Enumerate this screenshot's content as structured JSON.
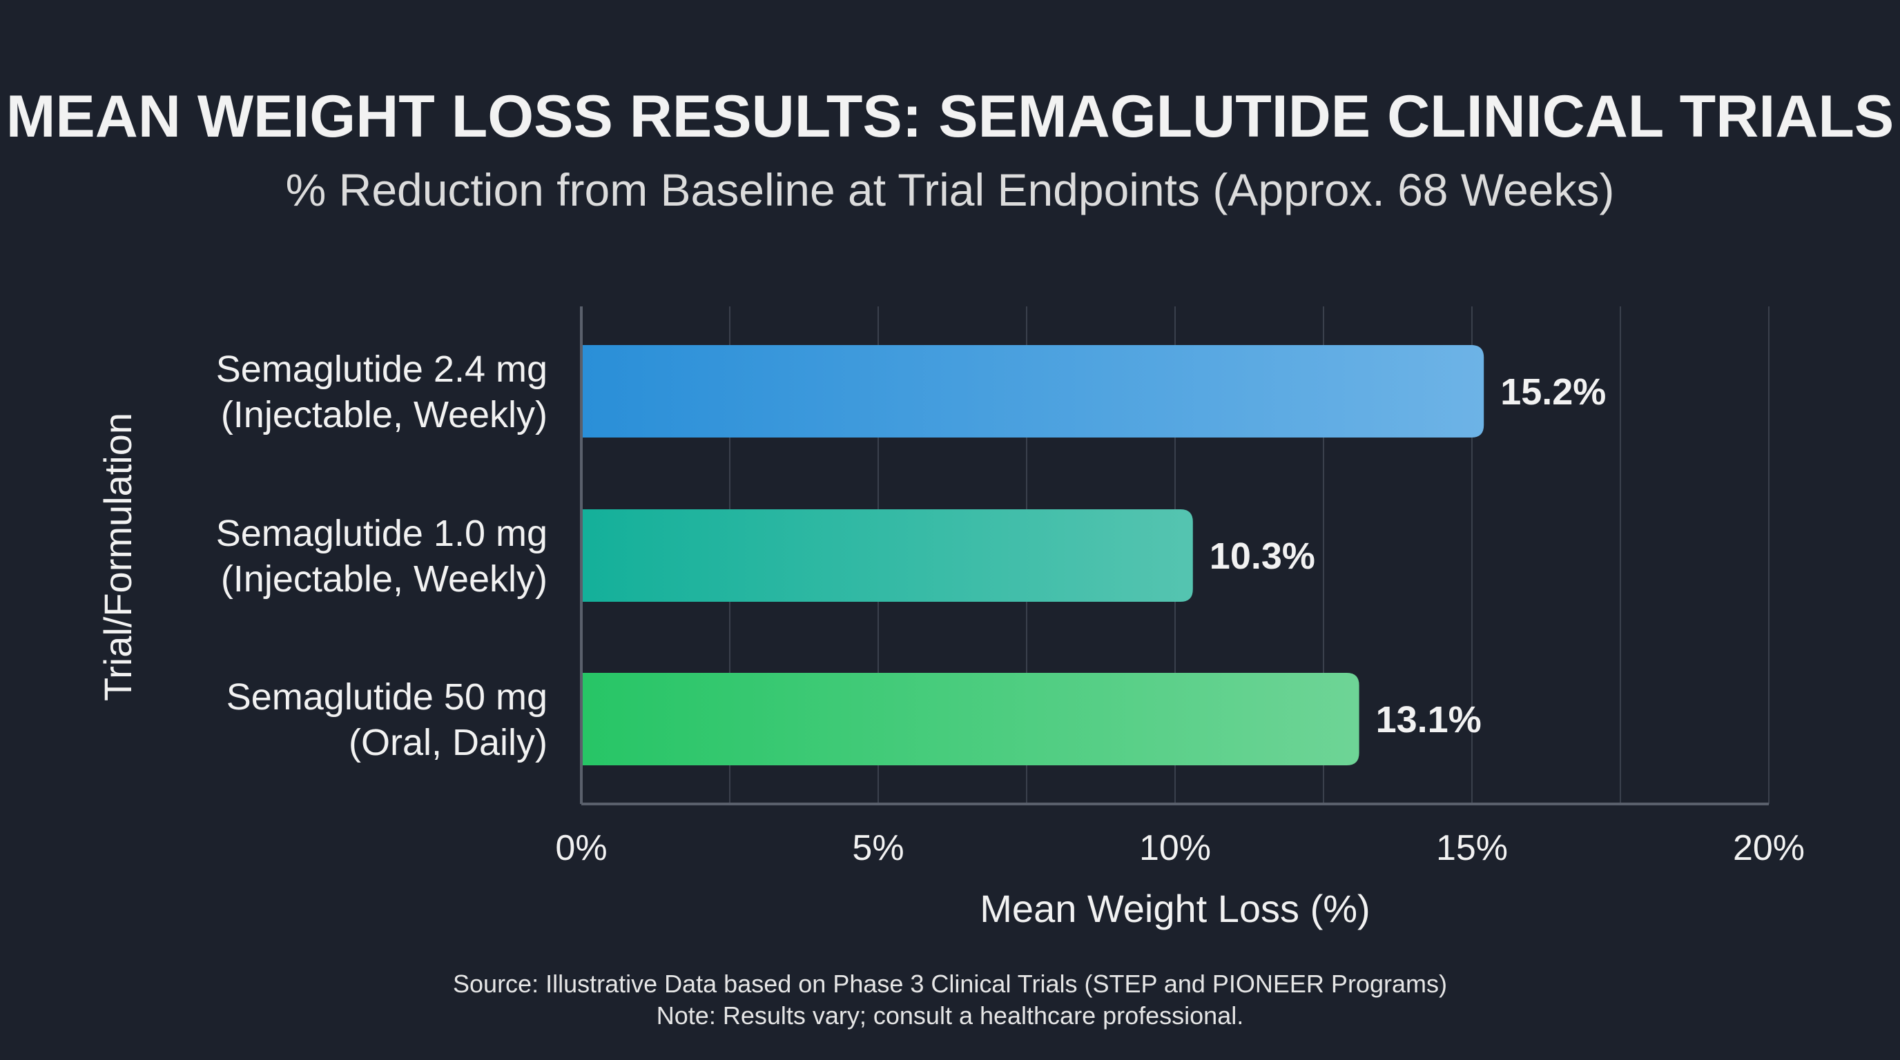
{
  "chart_data": {
    "type": "bar",
    "orientation": "horizontal",
    "title": "MEAN WEIGHT LOSS RESULTS: SEMAGLUTIDE CLINICAL TRIALS",
    "subtitle": "% Reduction from Baseline at Trial Endpoints (Approx. 68 Weeks)",
    "xlabel": "Mean Weight Loss (%)",
    "ylabel": "Trial/Formulation",
    "xlim": [
      0,
      20
    ],
    "xticks": [
      "0%",
      "5%",
      "10%",
      "15%",
      "20%"
    ],
    "grid": true,
    "categories": [
      [
        "Semaglutide 2.4 mg",
        "(Injectable, Weekly)"
      ],
      [
        "Semaglutide 1.0 mg",
        "(Injectable, Weekly)"
      ],
      [
        "Semaglutide 50 mg",
        "(Oral, Daily)"
      ]
    ],
    "values": [
      15.2,
      10.3,
      13.1
    ],
    "data_labels": [
      "15.2%",
      "10.3%",
      "13.1%"
    ],
    "colors": [
      [
        "#2a8fd8",
        "#6db3e6"
      ],
      [
        "#14b09a",
        "#55c4b0"
      ],
      [
        "#27c566",
        "#6ed496"
      ]
    ],
    "footnotes": [
      "Source: Illustrative Data based on Phase 3 Clinical Trials (STEP and PIONEER Programs)",
      "Note: Results vary; consult a healthcare professional."
    ]
  },
  "colors": {
    "background": "#1c212c",
    "grid": "#3a404c",
    "axis": "#5a606c"
  }
}
